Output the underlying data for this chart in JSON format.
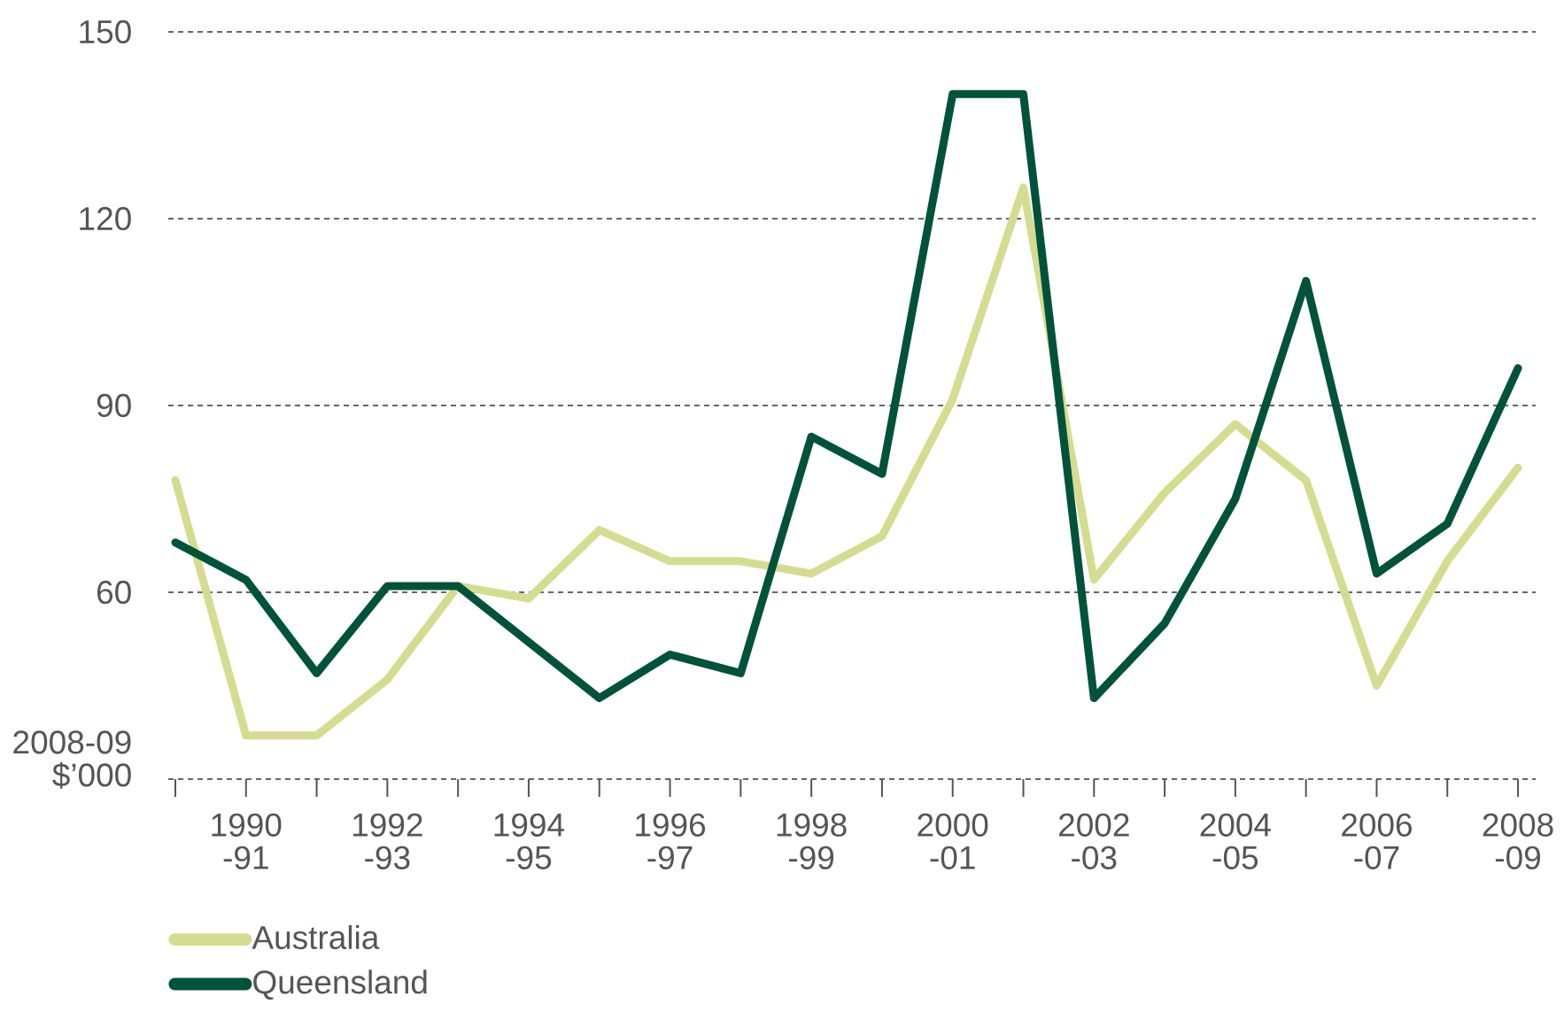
{
  "chart_data": {
    "type": "line",
    "ylabel": "2008-09 $’000",
    "categories": [
      null,
      "1990 -91",
      null,
      "1992 -93",
      null,
      "1994 -95",
      null,
      "1996 -97",
      null,
      "1998 -99",
      null,
      "2000 -01",
      null,
      "2002 -03",
      null,
      "2004 -05",
      null,
      "2006 -07",
      null,
      "2008 -09"
    ],
    "series": [
      {
        "name": "Australia",
        "color": "#d5dc8f",
        "values": [
          78,
          37,
          37,
          46,
          61,
          59,
          70,
          65,
          65,
          63,
          69,
          91,
          125,
          62,
          76,
          87,
          78,
          45,
          65,
          80
        ]
      },
      {
        "name": "Queensland",
        "color": "#00533a",
        "values": [
          68,
          62,
          47,
          61,
          61,
          52,
          43,
          50,
          47,
          85,
          79,
          140,
          140,
          43,
          55,
          75,
          110,
          63,
          71,
          96
        ]
      }
    ],
    "ylim": [
      30,
      150
    ],
    "yticks": [
      {
        "value": 30,
        "label": null
      },
      60,
      90,
      120,
      150
    ],
    "grid": "y",
    "legend": "bottom left",
    "marker": "none",
    "line_style": "solid"
  }
}
